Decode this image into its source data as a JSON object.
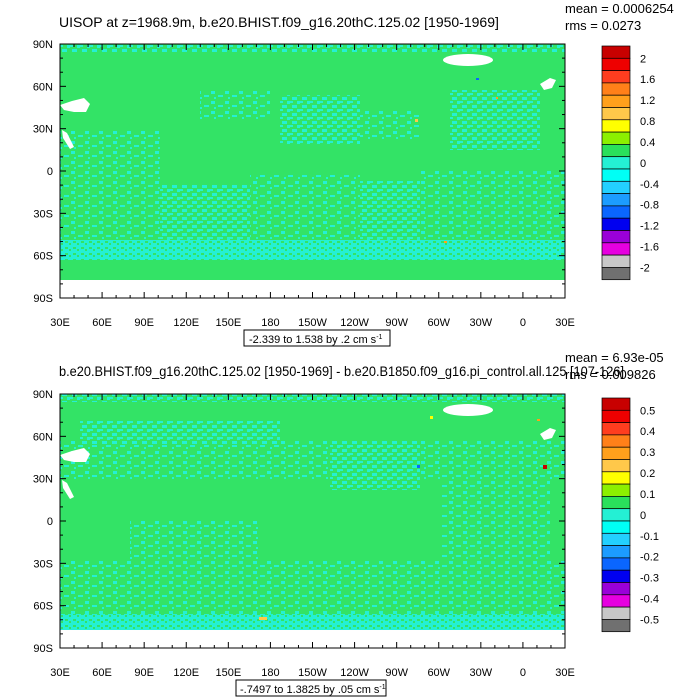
{
  "colors": {
    "green": "#33e366",
    "cyan": "#24f0d4",
    "white": "#ffffff"
  },
  "chart_data": [
    {
      "type": "heatmap",
      "title": "UISOP at z=1968.9m, b.e20.BHIST.f09_g16.20thC.125.02 [1950-1969]",
      "stats": [
        "mean = 0.0006254",
        "rms = 0.0273"
      ],
      "range_label": "-2.339 to 1.538 by .2 cm s",
      "range_sup": "-1",
      "x_ticks": [
        "30E",
        "60E",
        "90E",
        "120E",
        "150E",
        "180",
        "150W",
        "120W",
        "90W",
        "60W",
        "30W",
        "0",
        "30E"
      ],
      "y_ticks": [
        "90N",
        "60N",
        "30N",
        "0",
        "30S",
        "60S",
        "90S"
      ],
      "colorbar": {
        "labels": [
          "2",
          "1.6",
          "1.2",
          "0.8",
          "0.4",
          "0",
          "-0.4",
          "-0.8",
          "-1.2",
          "-1.6",
          "-2"
        ],
        "colors": [
          "#c80000",
          "#ee0000",
          "#ff3d1f",
          "#ff8019",
          "#ffa01c",
          "#ffc84a",
          "#ffff00",
          "#8cf000",
          "#2ae05b",
          "#24f0d4",
          "#00fff5",
          "#23d0ff",
          "#1c9cff",
          "#0a66ff",
          "#0000f0",
          "#9a00d8",
          "#e600e0",
          "#c8c8c8",
          "#707070"
        ]
      },
      "dominant_values": {
        "positive_near_zero": "0 to 0.2",
        "negative_near_zero": "-0.2 to 0"
      }
    },
    {
      "type": "heatmap",
      "title": "b.e20.BHIST.f09_g16.20thC.125.02 [1950-1969] - b.e20.B1850.f09_g16.pi_control.all.125 [107-126]",
      "stats": [
        "mean = 6.93e-05",
        "rms = 0.009826"
      ],
      "range_label": "-.7497 to 1.3825 by .05 cm s",
      "range_sup": "-1",
      "x_ticks": [
        "30E",
        "60E",
        "90E",
        "120E",
        "150E",
        "180",
        "150W",
        "120W",
        "90W",
        "60W",
        "30W",
        "0",
        "30E"
      ],
      "y_ticks": [
        "90N",
        "60N",
        "30N",
        "0",
        "30S",
        "60S",
        "90S"
      ],
      "colorbar": {
        "labels": [
          "0.5",
          "0.4",
          "0.3",
          "0.2",
          "0.1",
          "0",
          "-0.1",
          "-0.2",
          "-0.3",
          "-0.4",
          "-0.5"
        ],
        "colors": [
          "#c80000",
          "#ee0000",
          "#ff3d1f",
          "#ff8019",
          "#ffa01c",
          "#ffc84a",
          "#ffff00",
          "#8cf000",
          "#2ae05b",
          "#24f0d4",
          "#00fff5",
          "#23d0ff",
          "#1c9cff",
          "#0a66ff",
          "#0000f0",
          "#9a00d8",
          "#e600e0",
          "#c8c8c8",
          "#707070"
        ]
      },
      "dominant_values": {
        "positive_near_zero": "0 to 0.025",
        "negative_near_zero": "-0.025 to 0"
      }
    }
  ]
}
